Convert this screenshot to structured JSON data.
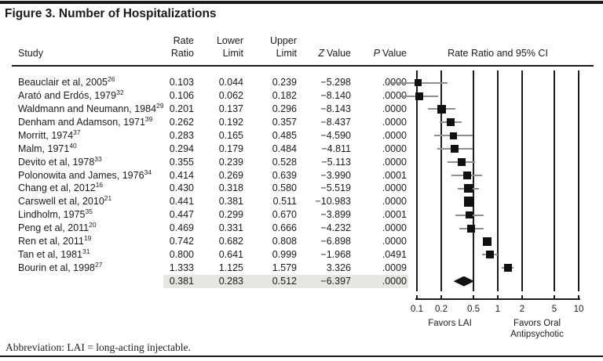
{
  "title": "Figure 3. Number of Hospitalizations",
  "table": {
    "headers": {
      "study": "Study",
      "rate1": "Rate",
      "rate2": "Ratio",
      "lower1": "Lower",
      "lower2": "Limit",
      "upper1": "Upper",
      "upper2": "Limit",
      "z_letter": "Z",
      "p_letter": "P",
      "value_word": "Value"
    }
  },
  "chart_data": {
    "type": "scatter",
    "subtype": "forest-plot",
    "title": "Figure 3. Number of Hospitalizations",
    "plot_header": "Rate Ratio and 95% CI",
    "x_scale": "log",
    "xlim": [
      0.1,
      10
    ],
    "x_ticks": [
      "0.1",
      "0.2",
      "0.5",
      "1",
      "2",
      "5",
      "10"
    ],
    "favors_left": "Favors LAI",
    "favors_right_line1": "Favors Oral",
    "favors_right_line2": "Antipsychotic",
    "columns": [
      "Study",
      "Rate Ratio",
      "Lower Limit",
      "Upper Limit",
      "Z Value",
      "P Value"
    ],
    "studies": [
      {
        "study": "Beauclair et al, 2005",
        "ref": "26",
        "rate_ratio": 0.103,
        "lower": 0.044,
        "upper": 0.239,
        "z": "−5.298",
        "p": ".0000",
        "marker": 9
      },
      {
        "study": "Arató and Erdós, 1979",
        "ref": "32",
        "rate_ratio": 0.106,
        "lower": 0.062,
        "upper": 0.182,
        "z": "−8.140",
        "p": ".0000",
        "marker": 10
      },
      {
        "study": "Waldmann and Neumann, 1984",
        "ref": "29",
        "rate_ratio": 0.201,
        "lower": 0.137,
        "upper": 0.296,
        "z": "−8.143",
        "p": ".0000",
        "marker": 11
      },
      {
        "study": "Denham and Adamson, 1971",
        "ref": "39",
        "rate_ratio": 0.262,
        "lower": 0.192,
        "upper": 0.357,
        "z": "−8.437",
        "p": ".0000",
        "marker": 10
      },
      {
        "study": "Morritt, 1974",
        "ref": "37",
        "rate_ratio": 0.283,
        "lower": 0.165,
        "upper": 0.485,
        "z": "−4.590",
        "p": ".0000",
        "marker": 9
      },
      {
        "study": "Malm, 1971",
        "ref": "40",
        "rate_ratio": 0.294,
        "lower": 0.179,
        "upper": 0.484,
        "z": "−4.811",
        "p": ".0000",
        "marker": 10
      },
      {
        "study": "Devito et al, 1978",
        "ref": "33",
        "rate_ratio": 0.355,
        "lower": 0.239,
        "upper": 0.528,
        "z": "−5.113",
        "p": ".0000",
        "marker": 10
      },
      {
        "study": "Polonowita and James, 1976",
        "ref": "34",
        "rate_ratio": 0.414,
        "lower": 0.269,
        "upper": 0.639,
        "z": "−3.990",
        "p": ".0001",
        "marker": 10
      },
      {
        "study": "Chang et al, 2012",
        "ref": "16",
        "rate_ratio": 0.43,
        "lower": 0.318,
        "upper": 0.58,
        "z": "−5.519",
        "p": ".0000",
        "marker": 11
      },
      {
        "study": "Carswell et al, 2010",
        "ref": "21",
        "rate_ratio": 0.441,
        "lower": 0.381,
        "upper": 0.511,
        "z": "−10.983",
        "p": ".0000",
        "marker": 13
      },
      {
        "study": "Lindholm, 1975",
        "ref": "35",
        "rate_ratio": 0.447,
        "lower": 0.299,
        "upper": 0.67,
        "z": "−3.899",
        "p": ".0001",
        "marker": 9
      },
      {
        "study": "Peng et al, 2011",
        "ref": "20",
        "rate_ratio": 0.469,
        "lower": 0.331,
        "upper": 0.666,
        "z": "−4.232",
        "p": ".0000",
        "marker": 10
      },
      {
        "study": "Ren et al, 2011",
        "ref": "19",
        "rate_ratio": 0.742,
        "lower": 0.682,
        "upper": 0.808,
        "z": "−6.898",
        "p": ".0000",
        "marker": 11
      },
      {
        "study": "Tan et al, 1981",
        "ref": "31",
        "rate_ratio": 0.8,
        "lower": 0.641,
        "upper": 0.999,
        "z": "−1.968",
        "p": ".0491",
        "marker": 10
      },
      {
        "study": "Bourin et al, 1998",
        "ref": "27",
        "rate_ratio": 1.333,
        "lower": 1.125,
        "upper": 1.579,
        "z": "3.326",
        "p": ".0009",
        "marker": 10
      }
    ],
    "overall": {
      "rate_ratio": 0.381,
      "lower": 0.283,
      "upper": 0.512,
      "z": "−6.397",
      "p": ".0000"
    },
    "highlight_color": "#e6e6e2",
    "legend_position": "none",
    "grid": true
  },
  "footer": {
    "abbreviation": "Abbreviation: LAI = long-acting injectable."
  }
}
